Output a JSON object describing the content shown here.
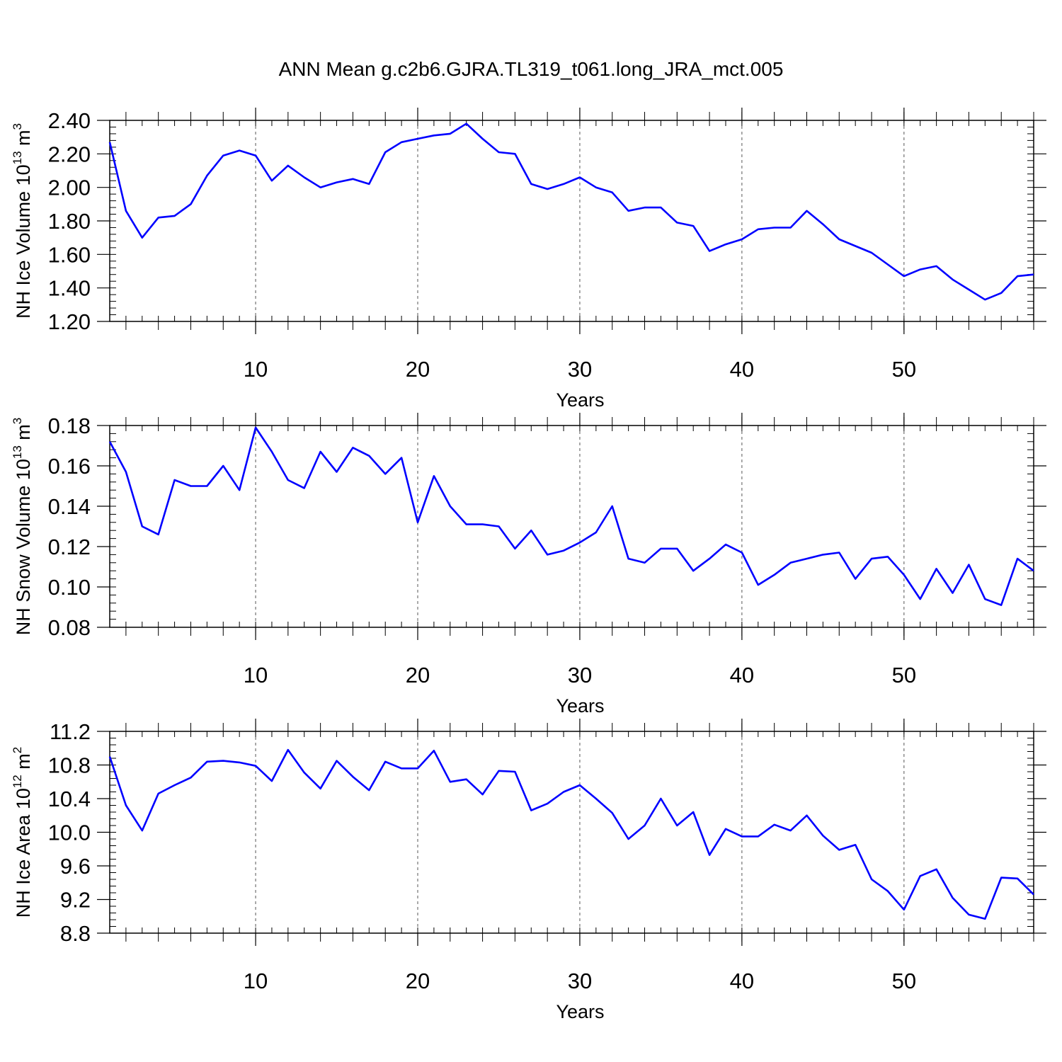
{
  "title": "ANN Mean g.c2b6.GJRA.TL319_t061.long_JRA_mct.005",
  "colors": {
    "line": "#0000ff",
    "axis": "#000000",
    "grid": "#555555"
  },
  "chart_data": [
    {
      "type": "line",
      "ylabel": {
        "prefix": "NH Ice Volume 10",
        "exponent": "13",
        "unit": " m",
        "unit_exponent": "3"
      },
      "xlabel": "Years",
      "xlim": [
        1,
        58
      ],
      "ylim": [
        1.2,
        2.4
      ],
      "ytick_values": [
        1.2,
        1.4,
        1.6,
        1.8,
        2.0,
        2.2,
        2.4
      ],
      "ytick_labels": [
        "1.20",
        "1.40",
        "1.60",
        "1.80",
        "2.00",
        "2.20",
        "2.40"
      ],
      "ytick_decimals": 2,
      "yminor_step": 0.04,
      "xtick_values": [
        10,
        20,
        30,
        40,
        50
      ],
      "xtick_labels": [
        "10",
        "20",
        "30",
        "40",
        "50"
      ],
      "grid": "vertical dashed at major x ticks",
      "series": [
        {
          "x": [
            1,
            2,
            3,
            4,
            5,
            6,
            7,
            8,
            9,
            10,
            11,
            12,
            13,
            14,
            15,
            16,
            17,
            18,
            19,
            20,
            21,
            22,
            23,
            24,
            25,
            26,
            27,
            28,
            29,
            30,
            31,
            32,
            33,
            34,
            35,
            36,
            37,
            38,
            39,
            40,
            41,
            42,
            43,
            44,
            45,
            46,
            47,
            48,
            49,
            50,
            51,
            52,
            53,
            54,
            55,
            56,
            57,
            58
          ],
          "values": [
            2.27,
            1.86,
            1.7,
            1.82,
            1.83,
            1.9,
            2.07,
            2.19,
            2.22,
            2.19,
            2.04,
            2.13,
            2.06,
            2.0,
            2.03,
            2.05,
            2.02,
            2.21,
            2.27,
            2.29,
            2.31,
            2.32,
            2.38,
            2.29,
            2.21,
            2.2,
            2.02,
            1.99,
            2.02,
            2.06,
            2.0,
            1.97,
            1.86,
            1.88,
            1.88,
            1.79,
            1.77,
            1.62,
            1.66,
            1.69,
            1.75,
            1.76,
            1.76,
            1.86,
            1.78,
            1.69,
            1.65,
            1.61,
            1.54,
            1.47,
            1.51,
            1.53,
            1.45,
            1.39,
            1.33,
            1.37,
            1.47,
            1.48
          ]
        }
      ]
    },
    {
      "type": "line",
      "ylabel": {
        "prefix": "NH Snow Volume 10",
        "exponent": "13",
        "unit": " m",
        "unit_exponent": "3"
      },
      "xlabel": "Years",
      "xlim": [
        1,
        58
      ],
      "ylim": [
        0.08,
        0.18
      ],
      "ytick_values": [
        0.08,
        0.1,
        0.12,
        0.14,
        0.16,
        0.18
      ],
      "ytick_labels": [
        "0.08",
        "0.10",
        "0.12",
        "0.14",
        "0.16",
        "0.18"
      ],
      "ytick_decimals": 2,
      "yminor_step": 0.004,
      "xtick_values": [
        10,
        20,
        30,
        40,
        50
      ],
      "xtick_labels": [
        "10",
        "20",
        "30",
        "40",
        "50"
      ],
      "grid": "vertical dashed at major x ticks",
      "series": [
        {
          "x": [
            1,
            2,
            3,
            4,
            5,
            6,
            7,
            8,
            9,
            10,
            11,
            12,
            13,
            14,
            15,
            16,
            17,
            18,
            19,
            20,
            21,
            22,
            23,
            24,
            25,
            26,
            27,
            28,
            29,
            30,
            31,
            32,
            33,
            34,
            35,
            36,
            37,
            38,
            39,
            40,
            41,
            42,
            43,
            44,
            45,
            46,
            47,
            48,
            49,
            50,
            51,
            52,
            53,
            54,
            55,
            56,
            57,
            58
          ],
          "values": [
            0.172,
            0.157,
            0.13,
            0.126,
            0.153,
            0.15,
            0.15,
            0.16,
            0.148,
            0.179,
            0.167,
            0.153,
            0.149,
            0.167,
            0.157,
            0.169,
            0.165,
            0.156,
            0.164,
            0.132,
            0.155,
            0.14,
            0.131,
            0.131,
            0.13,
            0.119,
            0.128,
            0.116,
            0.118,
            0.122,
            0.127,
            0.14,
            0.114,
            0.112,
            0.119,
            0.119,
            0.108,
            0.114,
            0.121,
            0.117,
            0.101,
            0.106,
            0.112,
            0.114,
            0.116,
            0.117,
            0.104,
            0.114,
            0.115,
            0.106,
            0.094,
            0.109,
            0.097,
            0.111,
            0.094,
            0.091,
            0.114,
            0.108
          ]
        }
      ]
    },
    {
      "type": "line",
      "ylabel": {
        "prefix": "NH Ice Area 10",
        "exponent": "12",
        "unit": " m",
        "unit_exponent": "2"
      },
      "xlabel": "Years",
      "xlim": [
        1,
        58
      ],
      "ylim": [
        8.8,
        11.2
      ],
      "ytick_values": [
        8.8,
        9.2,
        9.6,
        10.0,
        10.4,
        10.8,
        11.2
      ],
      "ytick_labels": [
        "8.8",
        "9.2",
        "9.6",
        "10.0",
        "10.4",
        "10.8",
        "11.2"
      ],
      "ytick_decimals": 1,
      "yminor_step": 0.08,
      "xtick_values": [
        10,
        20,
        30,
        40,
        50
      ],
      "xtick_labels": [
        "10",
        "20",
        "30",
        "40",
        "50"
      ],
      "grid": "vertical dashed at major x ticks",
      "series": [
        {
          "x": [
            1,
            2,
            3,
            4,
            5,
            6,
            7,
            8,
            9,
            10,
            11,
            12,
            13,
            14,
            15,
            16,
            17,
            18,
            19,
            20,
            21,
            22,
            23,
            24,
            25,
            26,
            27,
            28,
            29,
            30,
            31,
            32,
            33,
            34,
            35,
            36,
            37,
            38,
            39,
            40,
            41,
            42,
            43,
            44,
            45,
            46,
            47,
            48,
            49,
            50,
            51,
            52,
            53,
            54,
            55,
            56,
            57,
            58
          ],
          "values": [
            10.9,
            10.32,
            10.02,
            10.46,
            10.56,
            10.65,
            10.84,
            10.85,
            10.83,
            10.79,
            10.61,
            10.98,
            10.71,
            10.52,
            10.85,
            10.66,
            10.5,
            10.84,
            10.76,
            10.76,
            10.97,
            10.6,
            10.63,
            10.45,
            10.73,
            10.72,
            10.26,
            10.34,
            10.48,
            10.56,
            10.4,
            10.23,
            9.92,
            10.08,
            10.4,
            10.08,
            10.24,
            9.73,
            10.04,
            9.95,
            9.95,
            10.09,
            10.02,
            10.2,
            9.96,
            9.79,
            9.85,
            9.44,
            9.3,
            9.08,
            9.48,
            9.56,
            9.22,
            9.02,
            8.97,
            9.46,
            9.45,
            9.26
          ]
        }
      ]
    }
  ]
}
